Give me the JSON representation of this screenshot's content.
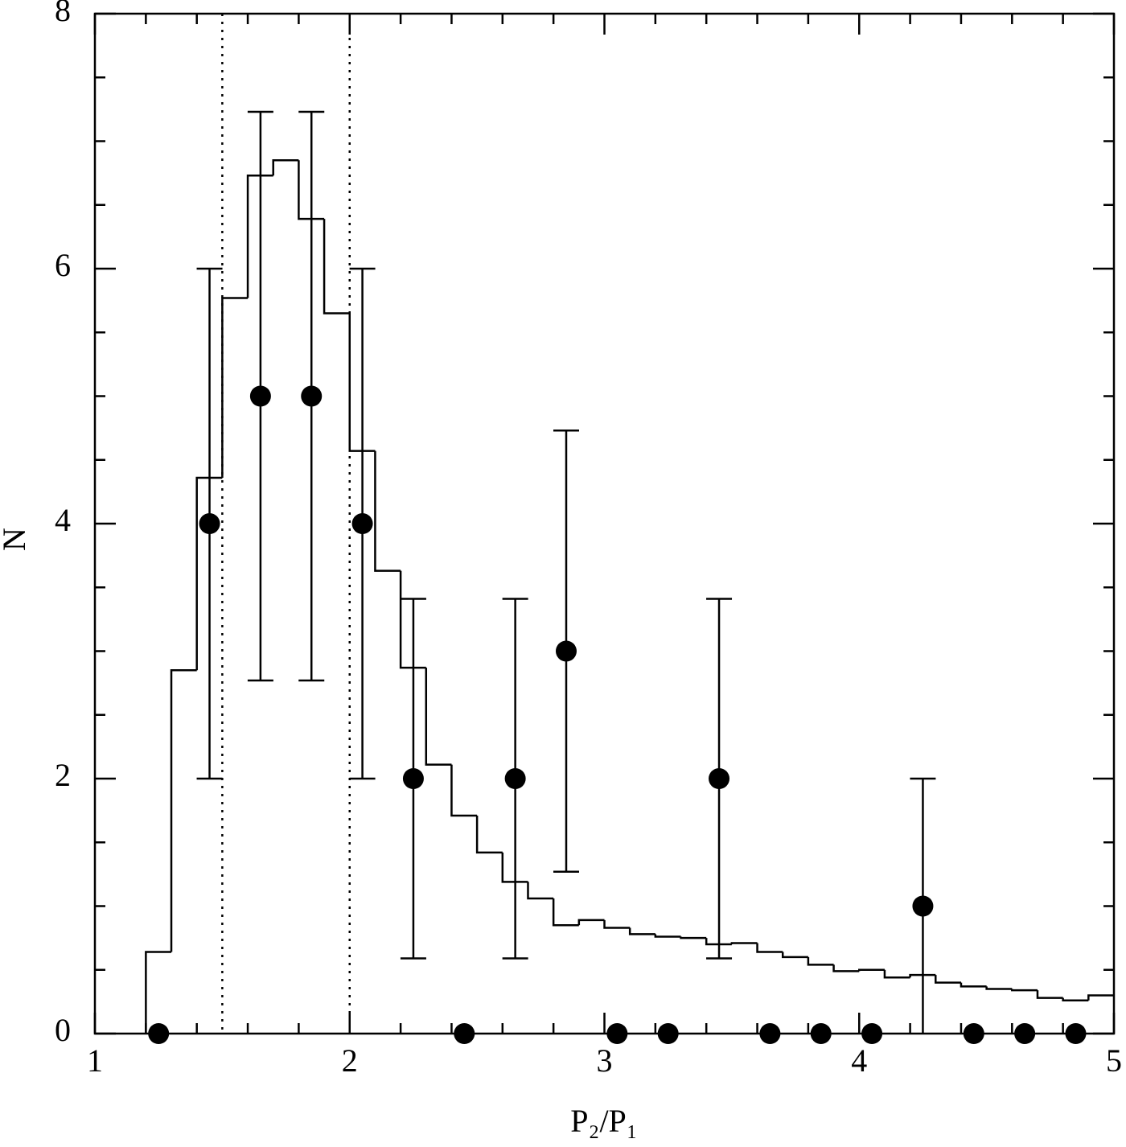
{
  "chart_data": {
    "type": "histogram",
    "xlabel": "P₂/P₁",
    "ylabel": "N",
    "bins": [
      1.2,
      1.3,
      1.4,
      1.5,
      1.6,
      1.7,
      1.8,
      1.9,
      2.0,
      2.1,
      2.2,
      2.3,
      2.4,
      2.5,
      2.6,
      2.7,
      2.8,
      2.9,
      3.0,
      3.1,
      3.2,
      3.3,
      3.4,
      3.5,
      3.6,
      3.7,
      3.8,
      3.9,
      4.0,
      4.1,
      4.2,
      4.3,
      4.4,
      4.5,
      4.6,
      4.7,
      4.8,
      4.9,
      5.0
    ],
    "counts": [
      0.64,
      2.85,
      4.36,
      5.77,
      6.73,
      6.85,
      6.39,
      5.65,
      4.57,
      3.63,
      2.87,
      2.11,
      1.71,
      1.42,
      1.19,
      1.06,
      0.85,
      0.89,
      0.83,
      0.78,
      0.76,
      0.75,
      0.7,
      0.71,
      0.64,
      0.6,
      0.54,
      0.49,
      0.5,
      0.44,
      0.46,
      0.4,
      0.37,
      0.35,
      0.34,
      0.28,
      0.26,
      0.3
    ],
    "points": {
      "x": [
        1.25,
        1.45,
        1.65,
        1.85,
        2.05,
        2.25,
        2.45,
        2.65,
        2.85,
        3.05,
        3.25,
        3.45,
        3.65,
        3.85,
        4.05,
        4.25,
        4.45,
        4.65,
        4.85
      ],
      "values": [
        0,
        4,
        5,
        5,
        4,
        2,
        0,
        2,
        3,
        0,
        0,
        2,
        0,
        0,
        0,
        1,
        0,
        0,
        0
      ],
      "errors": [
        null,
        2,
        2.23,
        2.23,
        2,
        1.41,
        null,
        1.41,
        1.73,
        null,
        null,
        1.41,
        null,
        null,
        null,
        1,
        null,
        null,
        null
      ]
    },
    "vlines": [
      1.5,
      2
    ],
    "color": "#000000",
    "xlim": [
      1,
      5
    ],
    "ylim": [
      0,
      8
    ],
    "xticks": [
      1,
      2,
      3,
      4,
      5
    ],
    "yticks": [
      0,
      2,
      4,
      6,
      8
    ],
    "xticks_minor": [
      1.2,
      1.4,
      1.6,
      1.8,
      2.2,
      2.4,
      2.6,
      2.8,
      3.2,
      3.4,
      3.6,
      3.8,
      4.2,
      4.4,
      4.6,
      4.8
    ],
    "yticks_minor": [
      0.5,
      1,
      1.5,
      2.5,
      3,
      3.5,
      4.5,
      5,
      5.5,
      6.5,
      7,
      7.5
    ]
  }
}
